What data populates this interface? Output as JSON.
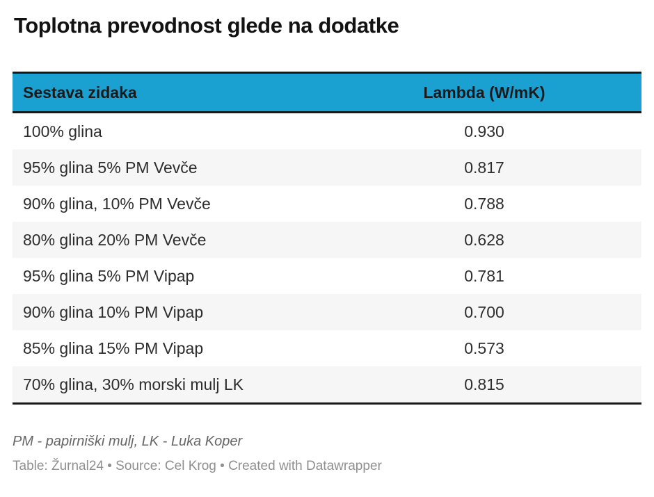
{
  "title": "Toplotna prevodnost glede na dodatke",
  "table": {
    "columns": [
      {
        "label": "Sestava zidaka"
      },
      {
        "label": "Lambda (W/mK)"
      }
    ],
    "rows": [
      {
        "sestava": "100% glina",
        "lambda": "0.930"
      },
      {
        "sestava": "95% glina 5% PM Vevče",
        "lambda": "0.817"
      },
      {
        "sestava": "90% glina, 10% PM Vevče",
        "lambda": "0.788"
      },
      {
        "sestava": "80% glina 20% PM Vevče",
        "lambda": "0.628"
      },
      {
        "sestava": "95% glina 5% PM Vipap",
        "lambda": "0.781"
      },
      {
        "sestava": "90% glina 10% PM Vipap",
        "lambda": "0.700"
      },
      {
        "sestava": "85% glina 15% PM Vipap",
        "lambda": "0.573"
      },
      {
        "sestava": "70% glina, 30% morski mulj LK",
        "lambda": "0.815"
      }
    ]
  },
  "footer": {
    "footnote": "PM - papirniški mulj, LK - Luka Koper",
    "attribution": "Table: Žurnal24 • Source: Cel Krog • Created with Datawrapper"
  },
  "colors": {
    "header_bg": "#1BA0D2",
    "row_alt_bg": "#F6F6F6",
    "border_dark": "#181818"
  },
  "chart_data": {
    "type": "table",
    "title": "Toplotna prevodnost glede na dodatke",
    "columns": [
      "Sestava zidaka",
      "Lambda (W/mK)"
    ],
    "rows": [
      [
        "100% glina",
        0.93
      ],
      [
        "95% glina 5% PM Vevče",
        0.817
      ],
      [
        "90% glina, 10% PM Vevče",
        0.788
      ],
      [
        "80% glina 20% PM Vevče",
        0.628
      ],
      [
        "95% glina 5% PM Vipap",
        0.781
      ],
      [
        "90% glina 10% PM Vipap",
        0.7
      ],
      [
        "85% glina 15% PM Vipap",
        0.573
      ],
      [
        "70% glina, 30% morski mulj LK",
        0.815
      ]
    ],
    "footnote": "PM - papirniški mulj, LK - Luka Koper",
    "source": "Cel Krog",
    "table_credit": "Žurnal24"
  }
}
